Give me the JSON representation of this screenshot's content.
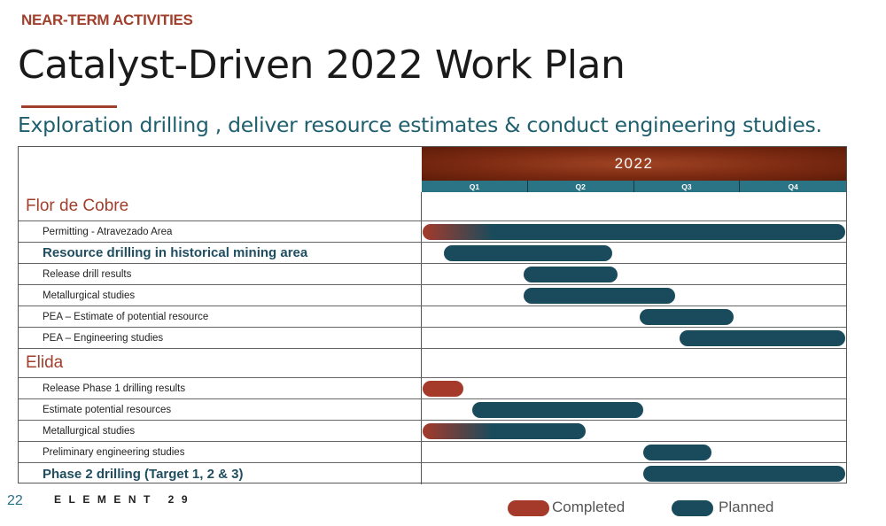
{
  "slide": {
    "section_tag": "NEAR-TERM ACTIVITIES",
    "title": "Catalyst-Driven 2022 Work Plan",
    "subtitle": "Exploration drilling , deliver resource estimates & conduct engineering studies.",
    "page_number": "22",
    "brand": "ELEMENT 29"
  },
  "colors": {
    "completed": "#a53a2a",
    "planned": "#194b5c",
    "accent": "#a0402c",
    "header_band": "#7c2a12",
    "quarter_strip": "#2a7486"
  },
  "chart_data": {
    "type": "gantt",
    "year": "2022",
    "quarters": [
      "Q1",
      "Q2",
      "Q3",
      "Q4"
    ],
    "time_unit": "quarter",
    "time_range": [
      0,
      4
    ],
    "legend": {
      "placement": "bottom-right",
      "entries": [
        {
          "name": "Completed",
          "color": "#a53a2a"
        },
        {
          "name": "Planned",
          "color": "#194b5c"
        }
      ]
    },
    "groups": [
      {
        "name": "Flor de Cobre",
        "tasks": [
          {
            "label": "Permitting - Atravezado Area",
            "start": 0.0,
            "end": 4.0,
            "status": "completed-to-planned",
            "emphasis": false
          },
          {
            "label": "Resource drilling in historical mining area",
            "start": 0.2,
            "end": 1.8,
            "status": "planned",
            "emphasis": true
          },
          {
            "label": "Release drill results",
            "start": 0.95,
            "end": 1.85,
            "status": "planned",
            "emphasis": false
          },
          {
            "label": "Metallurgical studies",
            "start": 0.95,
            "end": 2.4,
            "status": "planned",
            "emphasis": false
          },
          {
            "label": "PEA – Estimate of potential resource",
            "start": 2.05,
            "end": 2.95,
            "status": "planned",
            "emphasis": false
          },
          {
            "label": "PEA – Engineering studies",
            "start": 2.42,
            "end": 4.0,
            "status": "planned",
            "emphasis": false
          }
        ]
      },
      {
        "name": "Elida",
        "tasks": [
          {
            "label": "Release Phase 1 drilling results",
            "start": 0.0,
            "end": 0.4,
            "status": "completed",
            "emphasis": false
          },
          {
            "label": "Estimate potential resources",
            "start": 0.47,
            "end": 2.1,
            "status": "planned",
            "emphasis": false
          },
          {
            "label": "Metallurgical studies",
            "start": 0.0,
            "end": 1.55,
            "status": "completed-to-planned",
            "emphasis": false
          },
          {
            "label": "Preliminary engineering studies",
            "start": 2.08,
            "end": 2.74,
            "status": "planned",
            "emphasis": false
          },
          {
            "label": "Phase 2 drilling (Target 1, 2 & 3)",
            "start": 2.08,
            "end": 4.0,
            "status": "planned",
            "emphasis": true
          }
        ]
      }
    ]
  }
}
